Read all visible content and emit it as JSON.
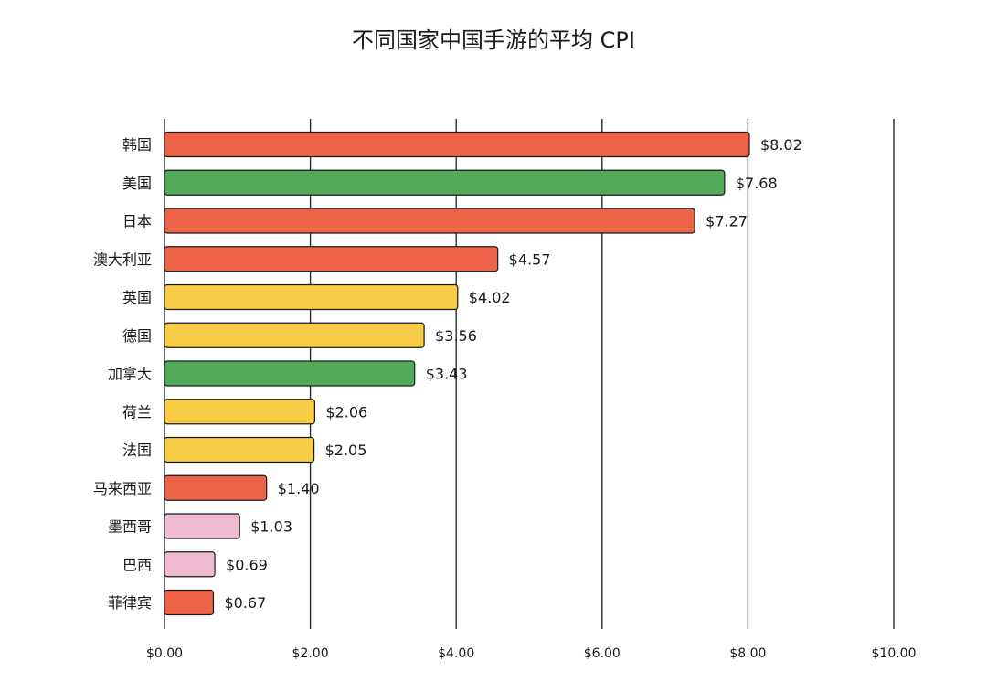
{
  "chart_data": {
    "type": "bar",
    "orientation": "horizontal",
    "title": "不同国家中国手游的平均 CPI",
    "xlabel": "",
    "ylabel": "",
    "xlim": [
      0,
      10
    ],
    "x_ticks": [
      0,
      2,
      4,
      6,
      8,
      10
    ],
    "x_tick_labels": [
      "$0.00",
      "$2.00",
      "$4.00",
      "$6.00",
      "$8.00",
      "$10.00"
    ],
    "grid": "vertical",
    "legend": "none",
    "categories": [
      "韩国",
      "美国",
      "日本",
      "澳大利亚",
      "英国",
      "德国",
      "加拿大",
      "荷兰",
      "法国",
      "马来西亚",
      "墨西哥",
      "巴西",
      "菲律宾"
    ],
    "values": [
      8.02,
      7.68,
      7.27,
      4.57,
      4.02,
      3.56,
      3.43,
      2.06,
      2.05,
      1.4,
      1.03,
      0.69,
      0.67
    ],
    "value_labels": [
      "$8.02",
      "$7.68",
      "$7.27",
      "$4.57",
      "$4.02",
      "$3.56",
      "$3.43",
      "$2.06",
      "$2.05",
      "$1.40",
      "$1.03",
      "$0.69",
      "$0.67"
    ],
    "bar_colors": [
      "#ec6347",
      "#52a95a",
      "#ec6347",
      "#ec6347",
      "#f6cd45",
      "#f6cd45",
      "#52a95a",
      "#f6cd45",
      "#f6cd45",
      "#ec6347",
      "#f0bcd2",
      "#f0bcd2",
      "#ec6347"
    ]
  }
}
